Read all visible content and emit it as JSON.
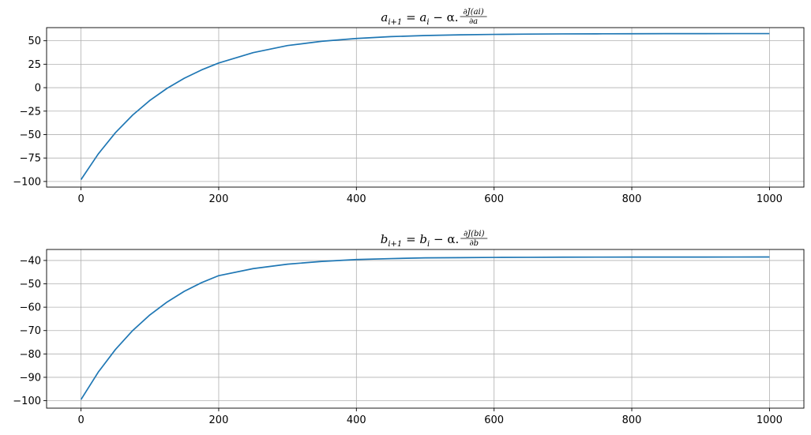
{
  "chart_data": [
    {
      "type": "line",
      "title": "a_{i+1} = a_i - α.∂J(a_i)/∂a",
      "title_parts": {
        "lhs": "a",
        "lhs_sub": "i+1",
        "eq": " = ",
        "rhs_var": "a",
        "rhs_sub": "i",
        "op": " − α.",
        "frac_num": "∂J(a",
        "frac_num_sub": "i",
        "frac_num_close": ")",
        "frac_den": "∂a"
      },
      "xlim": [
        -50,
        1050
      ],
      "ylim": [
        -106,
        64
      ],
      "xticks": [
        0,
        200,
        400,
        600,
        800,
        1000
      ],
      "yticks": [
        50,
        25,
        0,
        -25,
        -50,
        -75,
        -100
      ],
      "xtick_labels": [
        "0",
        "200",
        "400",
        "600",
        "800",
        "1000"
      ],
      "ytick_labels": [
        "50",
        "25",
        "0",
        "−25",
        "−50",
        "−75",
        "−100"
      ],
      "grid": true,
      "color": "#1f77b4",
      "series": [
        {
          "x": [
            0,
            25,
            50,
            75,
            100,
            125,
            150,
            175,
            200,
            250,
            300,
            350,
            400,
            450,
            500,
            550,
            600,
            650,
            700,
            750,
            800,
            850,
            900,
            950,
            1000
          ],
          "y": [
            -98,
            -70.7,
            -48.0,
            -29.2,
            -13.6,
            -0.7,
            10.0,
            18.9,
            26.3,
            37.3,
            44.9,
            49.5,
            52.4,
            54.4,
            55.6,
            56.3,
            56.8,
            57.1,
            57.3,
            57.4,
            57.5,
            57.55,
            57.6,
            57.62,
            57.65
          ]
        }
      ]
    },
    {
      "type": "line",
      "title": "b_{i+1} = b_i - α.∂J(b_i)/∂b",
      "title_parts": {
        "lhs": "b",
        "lhs_sub": "i+1",
        "eq": " = ",
        "rhs_var": "b",
        "rhs_sub": "i",
        "op": " − α.",
        "frac_num": "∂J(b",
        "frac_num_sub": "i",
        "frac_num_close": ")",
        "frac_den": "∂b"
      },
      "xlim": [
        -50,
        1050
      ],
      "ylim": [
        -103.2,
        -35.3
      ],
      "xticks": [
        0,
        200,
        400,
        600,
        800,
        1000
      ],
      "yticks": [
        -40,
        -50,
        -60,
        -70,
        -80,
        -90,
        -100
      ],
      "xtick_labels": [
        "0",
        "200",
        "400",
        "600",
        "800",
        "1000"
      ],
      "ytick_labels": [
        "−40",
        "−50",
        "−60",
        "−70",
        "−80",
        "−90",
        "−100"
      ],
      "grid": true,
      "color": "#1f77b4",
      "series": [
        {
          "x": [
            0,
            25,
            50,
            75,
            100,
            125,
            150,
            175,
            200,
            250,
            300,
            350,
            400,
            450,
            500,
            550,
            600,
            650,
            700,
            750,
            800,
            850,
            900,
            950,
            1000
          ],
          "y": [
            -99.5,
            -87.8,
            -78.1,
            -70.0,
            -63.3,
            -57.8,
            -53.2,
            -49.5,
            -46.5,
            -43.5,
            -41.6,
            -40.4,
            -39.6,
            -39.2,
            -38.9,
            -38.8,
            -38.7,
            -38.65,
            -38.6,
            -38.58,
            -38.56,
            -38.55,
            -38.54,
            -38.53,
            -38.52
          ]
        }
      ]
    }
  ]
}
